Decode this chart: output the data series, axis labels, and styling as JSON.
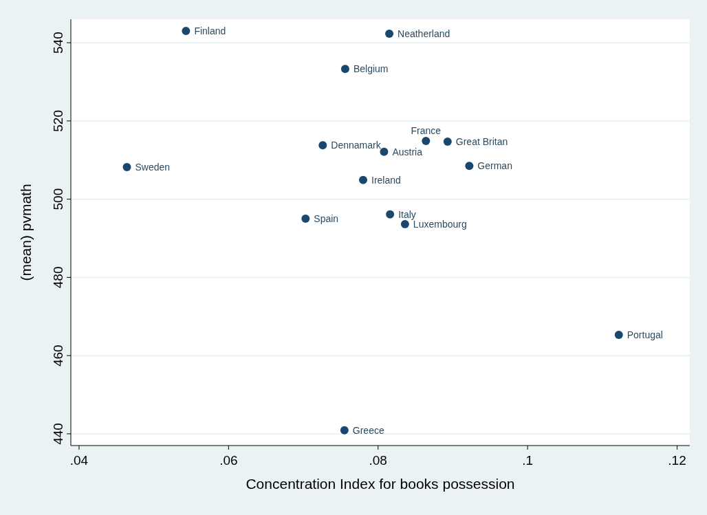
{
  "chart_data": {
    "type": "scatter",
    "xlabel": "Concentration Index for books possession",
    "ylabel": "(mean) pvmath",
    "x": [
      0.0543,
      0.0815,
      0.0756,
      0.0864,
      0.0893,
      0.0726,
      0.0808,
      0.0464,
      0.0922,
      0.078,
      0.0703,
      0.0816,
      0.0836,
      0.1122,
      0.0755
    ],
    "series": [
      {
        "color": "#1a476f",
        "values": [
          543.0,
          542.3,
          533.3,
          514.9,
          514.7,
          513.8,
          512.1,
          508.2,
          508.5,
          504.9,
          495.0,
          496.1,
          493.6,
          465.3,
          440.9
        ],
        "value_labels": [
          "Finland",
          "Neatherland",
          "Belgium",
          "France",
          "Great Britan",
          "Dennamark",
          "Austria",
          "Sweden",
          "German",
          "Ireland",
          "Spain",
          "Italy",
          "Luxembourg",
          "Portugal",
          "Greece"
        ]
      }
    ],
    "xlim": [
      0.0389,
      0.1217
    ],
    "xticks": [
      {
        "value": 0.04,
        "label": ".04"
      },
      {
        "value": 0.06,
        "label": ".06"
      },
      {
        "value": 0.08,
        "label": ".08"
      },
      {
        "value": 0.1,
        "label": ".1"
      },
      {
        "value": 0.12,
        "label": ".12"
      }
    ],
    "ylim": [
      437,
      546
    ],
    "yticks": [
      440,
      460,
      480,
      500,
      520,
      540
    ],
    "grid": "y",
    "marker": "circle"
  }
}
